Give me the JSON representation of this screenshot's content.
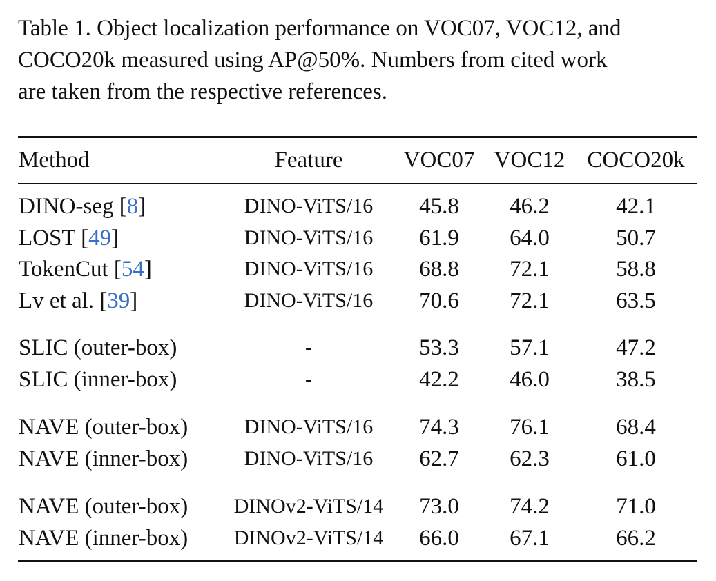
{
  "caption": {
    "lines": [
      "Table 1. Object localization performance on VOC07, VOC12, and",
      "COCO20k measured using AP@50%. Numbers from cited work",
      "are taken from the respective references."
    ]
  },
  "table": {
    "headers": {
      "method": "Method",
      "feature": "Feature",
      "voc07": "VOC07",
      "voc12": "VOC12",
      "coco20k": "COCO20k"
    },
    "rows": [
      {
        "method": "DINO-seg [",
        "ref": "8",
        "close": "]",
        "feature": "DINO-ViTS/16",
        "voc07": "45.8",
        "voc12": "46.2",
        "coco20k": "42.1"
      },
      {
        "method": "LOST [",
        "ref": "49",
        "close": "]",
        "feature": "DINO-ViTS/16",
        "voc07": "61.9",
        "voc12": "64.0",
        "coco20k": "50.7"
      },
      {
        "method": "TokenCut [",
        "ref": "54",
        "close": "]",
        "feature": "DINO-ViTS/16",
        "voc07": "68.8",
        "voc12": "72.1",
        "coco20k": "58.8"
      },
      {
        "method": "Lv et al. [",
        "ref": "39",
        "close": "]",
        "feature": "DINO-ViTS/16",
        "voc07": "70.6",
        "voc12": "72.1",
        "coco20k": "63.5"
      },
      {
        "method": "SLIC (outer-box)",
        "ref": "",
        "close": "",
        "feature": "-",
        "voc07": "53.3",
        "voc12": "57.1",
        "coco20k": "47.2"
      },
      {
        "method": "SLIC (inner-box)",
        "ref": "",
        "close": "",
        "feature": "-",
        "voc07": "42.2",
        "voc12": "46.0",
        "coco20k": "38.5"
      },
      {
        "method": "NAVE (outer-box)",
        "ref": "",
        "close": "",
        "feature": "DINO-ViTS/16",
        "voc07": "74.3",
        "voc12": "76.1",
        "coco20k": "68.4"
      },
      {
        "method": "NAVE (inner-box)",
        "ref": "",
        "close": "",
        "feature": "DINO-ViTS/16",
        "voc07": "62.7",
        "voc12": "62.3",
        "coco20k": "61.0"
      },
      {
        "method": "NAVE (outer-box)",
        "ref": "",
        "close": "",
        "feature": "DINOv2-ViTS/14",
        "voc07": "73.0",
        "voc12": "74.2",
        "coco20k": "71.0"
      },
      {
        "method": "NAVE (inner-box)",
        "ref": "",
        "close": "",
        "feature": "DINOv2-ViTS/14",
        "voc07": "66.0",
        "voc12": "67.1",
        "coco20k": "66.2"
      }
    ]
  },
  "colors": {
    "text": "#111111",
    "reference_link": "#3a6fc6",
    "background": "#ffffff"
  }
}
